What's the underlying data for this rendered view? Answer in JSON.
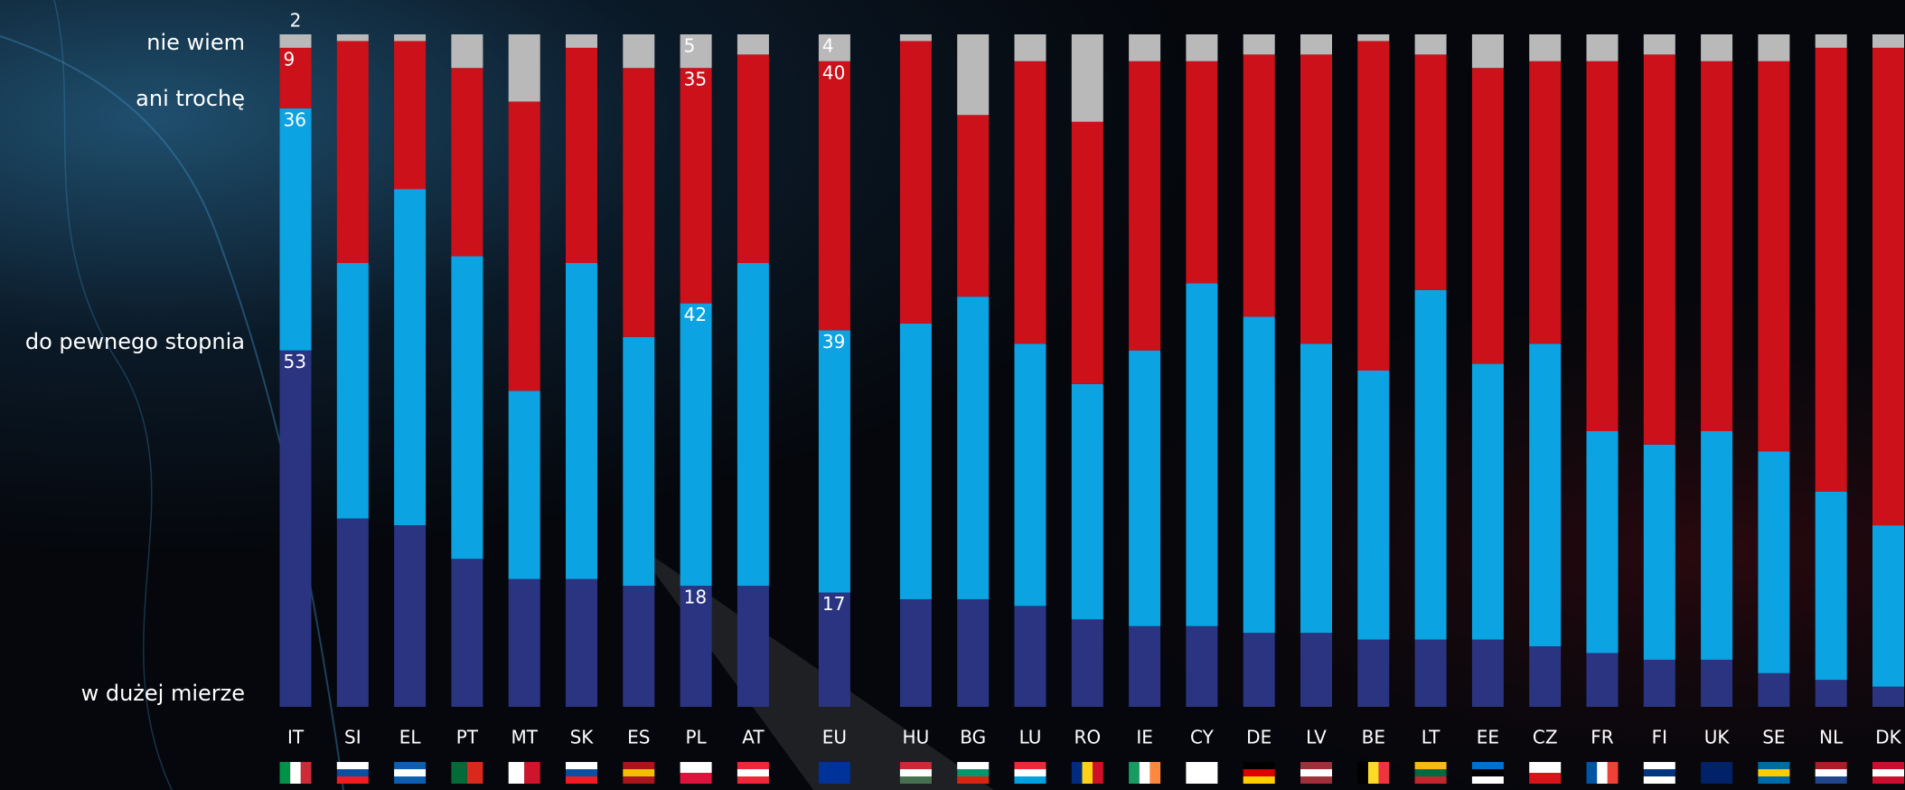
{
  "chart_data": {
    "type": "bar",
    "stacked": true,
    "categories": [
      "IT",
      "SI",
      "EL",
      "PT",
      "MT",
      "SK",
      "ES",
      "PL",
      "AT",
      "EU",
      "HU",
      "BG",
      "LU",
      "RO",
      "IE",
      "CY",
      "DE",
      "LV",
      "BE",
      "LT",
      "EE",
      "CZ",
      "FR",
      "FI",
      "UK",
      "SE",
      "NL",
      "DK"
    ],
    "ylim": [
      0,
      100
    ],
    "series": [
      {
        "name": "w dużej mierze",
        "color": "#2b3480",
        "values": [
          53,
          28,
          27,
          22,
          19,
          19,
          18,
          18,
          18,
          17,
          16,
          16,
          15,
          13,
          12,
          12,
          11,
          11,
          10,
          10,
          10,
          9,
          8,
          7,
          7,
          5,
          4,
          3
        ],
        "value_labels": [
          "53",
          null,
          null,
          null,
          null,
          null,
          null,
          "18",
          null,
          "17",
          null,
          null,
          null,
          null,
          null,
          null,
          null,
          null,
          null,
          null,
          null,
          null,
          null,
          null,
          null,
          null,
          null,
          null
        ]
      },
      {
        "name": "do pewnego stopnia",
        "color": "#0ba3e2",
        "values": [
          36,
          38,
          50,
          45,
          28,
          47,
          37,
          42,
          48,
          39,
          41,
          45,
          39,
          35,
          41,
          51,
          47,
          43,
          40,
          52,
          41,
          45,
          33,
          32,
          34,
          33,
          28,
          24
        ],
        "value_labels": [
          "36",
          null,
          null,
          null,
          null,
          null,
          null,
          "42",
          null,
          "39",
          null,
          null,
          null,
          null,
          null,
          null,
          null,
          null,
          null,
          null,
          null,
          null,
          null,
          null,
          null,
          null,
          null,
          null
        ]
      },
      {
        "name": "ani trochę",
        "color": "#cc111a",
        "values": [
          9,
          33,
          22,
          28,
          43,
          32,
          40,
          35,
          31,
          40,
          42,
          27,
          42,
          39,
          43,
          33,
          39,
          43,
          49,
          35,
          44,
          42,
          55,
          58,
          55,
          58,
          66,
          71
        ],
        "value_labels": [
          "9",
          null,
          null,
          null,
          null,
          null,
          null,
          "35",
          null,
          "40",
          null,
          null,
          null,
          null,
          null,
          null,
          null,
          null,
          null,
          null,
          null,
          null,
          null,
          null,
          null,
          null,
          null,
          null
        ]
      },
      {
        "name": "nie wiem",
        "color": "#b9b9b9",
        "values": [
          2,
          1,
          1,
          5,
          10,
          2,
          5,
          5,
          3,
          4,
          1,
          12,
          4,
          13,
          4,
          4,
          3,
          3,
          1,
          3,
          5,
          4,
          4,
          3,
          4,
          4,
          2,
          2
        ],
        "value_labels": [
          "2",
          null,
          null,
          null,
          null,
          null,
          null,
          "5",
          null,
          "4",
          null,
          null,
          null,
          null,
          null,
          null,
          null,
          null,
          null,
          null,
          null,
          null,
          null,
          null,
          null,
          null,
          null,
          null
        ]
      }
    ]
  }
}
